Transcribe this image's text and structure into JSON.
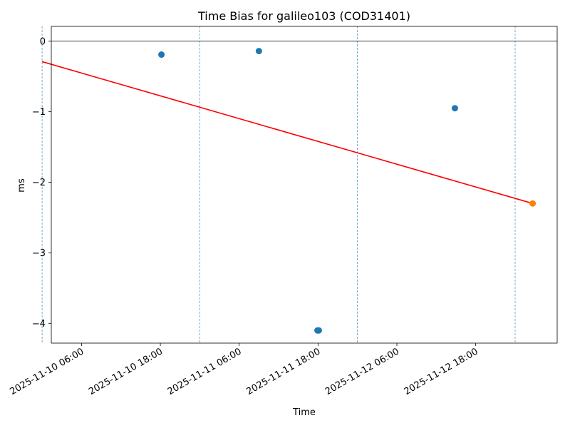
{
  "chart_data": {
    "type": "scatter",
    "title": "Time Bias for galileo103 (COD31401)",
    "xlabel": "Time",
    "ylabel": "ms",
    "xlim": [
      "2025-11-10T01:24",
      "2025-11-13T06:24"
    ],
    "ylim": [
      -4.28,
      0.21
    ],
    "xticks": [
      {
        "t": "2025-11-10T06:00",
        "label": "2025-11-10 06:00"
      },
      {
        "t": "2025-11-10T18:00",
        "label": "2025-11-10 18:00"
      },
      {
        "t": "2025-11-11T06:00",
        "label": "2025-11-11 06:00"
      },
      {
        "t": "2025-11-11T18:00",
        "label": "2025-11-11 18:00"
      },
      {
        "t": "2025-11-12T06:00",
        "label": "2025-11-12 06:00"
      },
      {
        "t": "2025-11-12T18:00",
        "label": "2025-11-12 18:00"
      }
    ],
    "yticks": [
      {
        "v": 0,
        "label": "0"
      },
      {
        "v": -1,
        "label": "−1"
      },
      {
        "v": -2,
        "label": "−2"
      },
      {
        "v": -3,
        "label": "−3"
      },
      {
        "v": -4,
        "label": "−4"
      }
    ],
    "day_markers": [
      "2025-11-10T00:00",
      "2025-11-11T00:00",
      "2025-11-12T00:00",
      "2025-11-13T00:00"
    ],
    "zero_line": 0,
    "series": [
      {
        "role": "measurements",
        "kind": "scatter",
        "color": "#1f77b4",
        "points": [
          {
            "x": "2025-11-10T18:10",
            "y": -0.19
          },
          {
            "x": "2025-11-11T09:00",
            "y": -0.14
          },
          {
            "x": "2025-11-11T17:55",
            "y": -4.1
          },
          {
            "x": "2025-11-11T18:07",
            "y": -4.1
          },
          {
            "x": "2025-11-12T14:50",
            "y": -0.95
          }
        ]
      },
      {
        "role": "fit",
        "kind": "line",
        "color": "#ff0000",
        "points": [
          {
            "x": "2025-11-10T00:00",
            "y": -0.29
          },
          {
            "x": "2025-11-13T02:40",
            "y": -2.3
          }
        ]
      },
      {
        "role": "prediction",
        "kind": "scatter",
        "color": "#ff7f0e",
        "points": [
          {
            "x": "2025-11-13T02:40",
            "y": -2.3
          }
        ]
      }
    ],
    "grid": false,
    "legend": "none"
  }
}
